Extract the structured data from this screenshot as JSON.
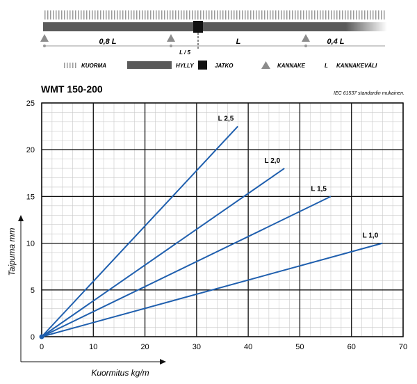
{
  "diagram": {
    "segment_labels": [
      "0,8 L",
      "L",
      "0,4 L"
    ],
    "splice_label": "L / 5"
  },
  "legend": {
    "items": [
      {
        "label": "KUORMA",
        "icon": "load-hatch-icon"
      },
      {
        "label": "HYLLY",
        "icon": "shelf-bar-icon"
      },
      {
        "label": "JATKO",
        "icon": "splice-square-icon"
      },
      {
        "label": "KANNAKE",
        "icon": "bracket-triangle-icon"
      },
      {
        "label": "KANNAKEVÄLI",
        "symbol": "L"
      }
    ]
  },
  "chart_title": "WMT 150-200",
  "standard_note": "IEC 61537 standardin mukainen.",
  "chart_data": {
    "type": "line",
    "title": "WMT 150-200",
    "xlabel": "Kuormitus kg/m",
    "ylabel": "Taipuma mm",
    "xlim": [
      0,
      70
    ],
    "ylim": [
      0,
      25
    ],
    "xticks": [
      0,
      10,
      20,
      30,
      40,
      50,
      60,
      70
    ],
    "yticks": [
      0,
      5,
      10,
      15,
      20,
      25
    ],
    "grid": true,
    "series": [
      {
        "name": "L 2,5",
        "x": [
          0,
          38
        ],
        "y": [
          0,
          22.5
        ],
        "color": "#1f5fae"
      },
      {
        "name": "L 2,0",
        "x": [
          0,
          47
        ],
        "y": [
          0,
          18
        ],
        "color": "#1f5fae"
      },
      {
        "name": "L 1,5",
        "x": [
          0,
          56
        ],
        "y": [
          0,
          15
        ],
        "color": "#1f5fae"
      },
      {
        "name": "L 1,0",
        "x": [
          0,
          66
        ],
        "y": [
          0,
          10
        ],
        "color": "#1f5fae"
      }
    ]
  }
}
